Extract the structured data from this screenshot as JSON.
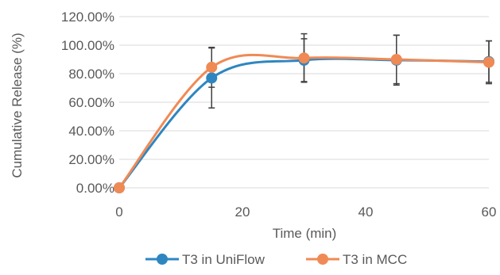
{
  "chart_data": {
    "type": "line",
    "xlabel": "Time (min)",
    "ylabel": "Cumulative Release (%)",
    "xlim": [
      0,
      60
    ],
    "ylim": [
      0,
      1.2
    ],
    "x_ticks": [
      "0",
      "20",
      "40",
      "60"
    ],
    "y_ticks": [
      "0.00%",
      "20.00%",
      "40.00%",
      "60.00%",
      "80.00%",
      "100.00%",
      "120.00%"
    ],
    "grid": "horizontal",
    "legend_position": "bottom",
    "smooth": true,
    "series": [
      {
        "name": "T3 in UniFlow",
        "color": "#2E86C1",
        "marker": "circle",
        "x": [
          0,
          15,
          30,
          45,
          60
        ],
        "y": [
          0.0,
          0.77,
          0.895,
          0.895,
          0.885
        ],
        "error": [
          0.0,
          0.21,
          0.15,
          0.175,
          0.145
        ]
      },
      {
        "name": "T3 in MCC",
        "color": "#F08A55",
        "marker": "circle",
        "x": [
          0,
          15,
          30,
          45,
          60
        ],
        "y": [
          0.0,
          0.845,
          0.91,
          0.9,
          0.88
        ],
        "error": [
          0.0,
          0.14,
          0.17,
          0.17,
          0.15
        ]
      }
    ],
    "error_bar_color": "#404040"
  }
}
